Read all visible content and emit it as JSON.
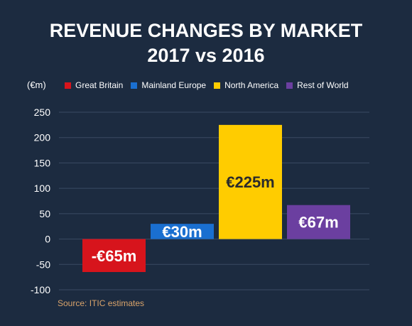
{
  "chart_data": {
    "type": "bar",
    "title": "REVENUE CHANGES BY MARKET",
    "subtitle": "2017 vs 2016",
    "unit_label": "(€m)",
    "categories": [
      "Great Britain",
      "Mainland Europe",
      "North America",
      "Rest of World"
    ],
    "values": [
      -65,
      30,
      225,
      67
    ],
    "data_labels": [
      "-€65m",
      "€30m",
      "€225m",
      "€67m"
    ],
    "colors": [
      "#d7141c",
      "#1a6fd0",
      "#ffcc00",
      "#6b3fa0"
    ],
    "label_colors": [
      "#ffffff",
      "#ffffff",
      "#2b2b2b",
      "#ffffff"
    ],
    "ylim": [
      -100,
      250
    ],
    "y_ticks": [
      250,
      200,
      150,
      100,
      50,
      0,
      -50,
      -100
    ],
    "grid": true,
    "legend_position": "top",
    "source": "Source: ITIC estimates"
  }
}
